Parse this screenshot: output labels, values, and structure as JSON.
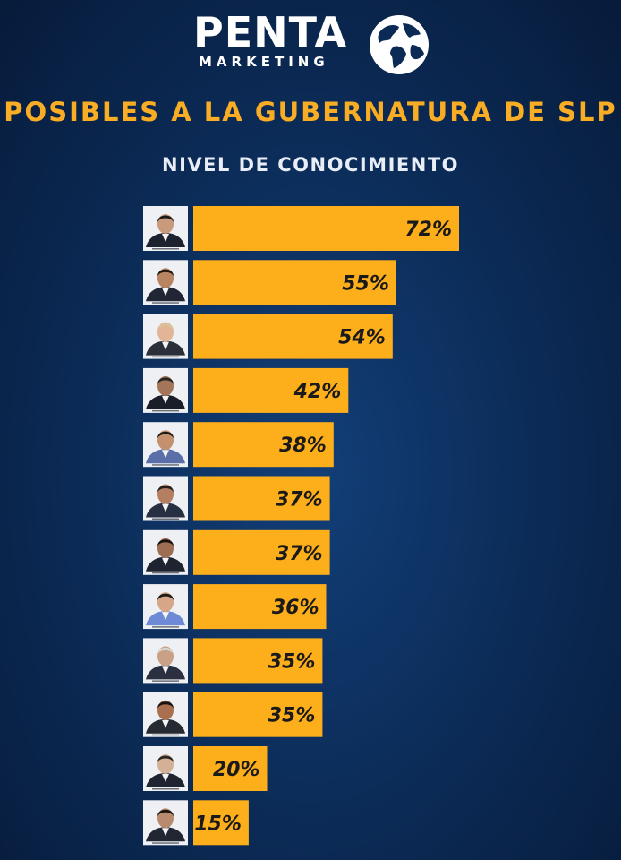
{
  "header": {
    "logo_word": "PENTA",
    "logo_sub": "MARKETING",
    "title": "POSIBLES A LA GUBERNATURA DE SLP",
    "subtitle": "NIVEL DE CONOCIMIENTO"
  },
  "colors": {
    "bar": "#fdae1b",
    "bar_text": "#1a1a1a",
    "title": "#f9ad24",
    "background": "#0b2a55"
  },
  "chart_data": {
    "type": "bar",
    "orientation": "horizontal",
    "title": "POSIBLES A LA GUBERNATURA DE SLP",
    "subtitle": "NIVEL DE CONOCIMIENTO",
    "categories": [
      "",
      "",
      "",
      "",
      "",
      "",
      "",
      "",
      "",
      "",
      "",
      ""
    ],
    "values": [
      72,
      55,
      54,
      42,
      38,
      37,
      37,
      36,
      35,
      35,
      20,
      15
    ],
    "value_labels": [
      "72%",
      "55%",
      "54%",
      "42%",
      "38%",
      "37%",
      "37%",
      "36%",
      "35%",
      "35%",
      "20%",
      "15%"
    ],
    "xlim": [
      0,
      72
    ],
    "grid": false,
    "legend": "none"
  }
}
